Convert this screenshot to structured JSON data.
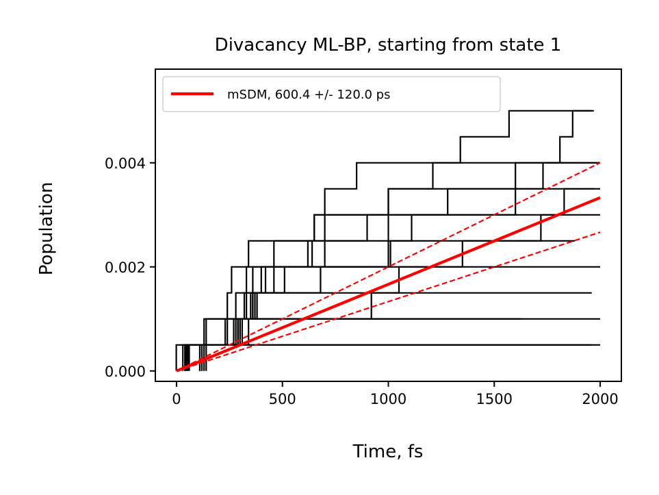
{
  "chart_data": {
    "type": "line",
    "title": "Divacancy ML-BP, starting from state 1",
    "xlabel": "Time, fs",
    "ylabel": "Population",
    "xlim": [
      -100,
      2100
    ],
    "ylim": [
      -0.0002,
      0.0058
    ],
    "xticks": [
      0,
      500,
      1000,
      1500,
      2000
    ],
    "xtick_labels": [
      "0",
      "500",
      "1000",
      "1500",
      "2000"
    ],
    "yticks": [
      0.0,
      0.002,
      0.004
    ],
    "ytick_labels": [
      "0.000",
      "0.002",
      "0.004"
    ],
    "grid": false,
    "legend_position": "top-left",
    "legend": [
      {
        "label": "mSDM,  600.4 +/-  120.0 ps",
        "color": "#ff0000",
        "style": "solid"
      }
    ],
    "step_quantum": 0.0005,
    "step_color": "#000000",
    "steps": [
      {
        "t": [
          -1
        ],
        "end": 2000
      },
      {
        "t": [
          30
        ],
        "end": 1960
      },
      {
        "t": [
          40,
          140
        ],
        "end": 2000
      },
      {
        "t": [
          50,
          240
        ],
        "end": 1630
      },
      {
        "t": [
          55,
          310,
          380
        ],
        "end": 1960
      },
      {
        "t": [
          40,
          270,
          320,
          680
        ],
        "end": 2000
      },
      {
        "t": [
          45,
          230,
          280,
          330,
          1000
        ],
        "end": 1880
      },
      {
        "t": [
          45,
          300,
          350,
          400,
          1010,
          1110
        ],
        "end": 2000
      },
      {
        "t": [
          60,
          340,
          370,
          420,
          460,
          1000,
          1600
        ],
        "end": 1970
      },
      {
        "t": [
          110,
          290,
          330,
          360,
          620,
          650,
          1000,
          1210
        ],
        "end": 2000
      },
      {
        "t": [
          110,
          130,
          240,
          260,
          340,
          650,
          700,
          850,
          1340,
          1570
        ],
        "end": 1960
      },
      {
        "t": [
          120,
          280,
          360,
          460,
          700,
          900,
          1280,
          1730
        ],
        "end": 2000
      },
      {
        "t": [
          130,
          290,
          360,
          510,
          640,
          700,
          1000,
          1600,
          1810,
          1870
        ],
        "end": 1970
      },
      {
        "t": [
          140,
          300,
          920,
          1050,
          1350,
          1720,
          1830
        ],
        "end": 2000
      }
    ],
    "series": [
      {
        "name": "mSDM,  600.4 +/-  120.0 ps",
        "x": [
          0,
          2000
        ],
        "y": [
          0.0,
          0.00333
        ],
        "color": "#ff0000",
        "style": "solid"
      },
      {
        "x": [
          0,
          2000
        ],
        "y": [
          0.0,
          0.004
        ],
        "color": "#ff0000",
        "style": "dashed"
      },
      {
        "x": [
          0,
          2000
        ],
        "y": [
          0.0,
          0.002666
        ],
        "color": "#ff0000",
        "style": "dashed"
      }
    ]
  }
}
